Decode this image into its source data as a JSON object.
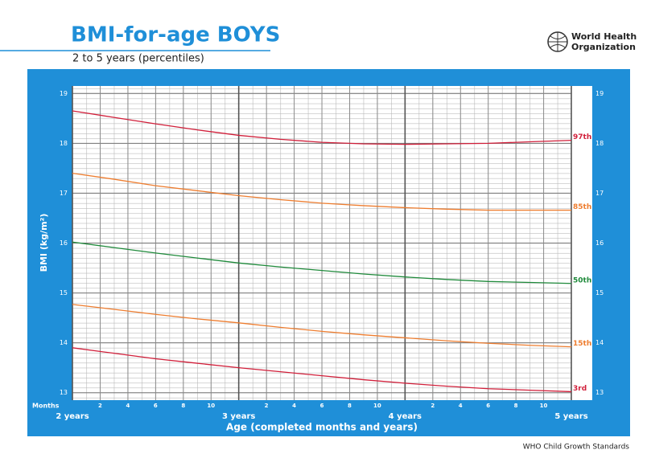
{
  "chart_data": {
    "type": "line",
    "title": "BMI-for-age BOYS",
    "subtitle": "2 to 5 years (percentiles)",
    "organization": [
      "World Health",
      "Organization"
    ],
    "source": "WHO Child Growth Standards",
    "x_label": "Age (completed months and years)",
    "x_unit_label": "Months",
    "y_label": "BMI (kg/m²)",
    "x": [
      24,
      27,
      30,
      33,
      36,
      39,
      42,
      45,
      48,
      51,
      54,
      57,
      60
    ],
    "xlim": [
      24,
      60
    ],
    "xticks": [
      {
        "value": 24,
        "label": "2 years"
      },
      {
        "value": 36,
        "label": "3 years"
      },
      {
        "value": 48,
        "label": "4 years"
      },
      {
        "value": 60,
        "label": "5 years"
      }
    ],
    "xticks_minor": [
      {
        "value": 26,
        "label": "2"
      },
      {
        "value": 28,
        "label": "4"
      },
      {
        "value": 30,
        "label": "6"
      },
      {
        "value": 32,
        "label": "8"
      },
      {
        "value": 34,
        "label": "10"
      },
      {
        "value": 38,
        "label": "2"
      },
      {
        "value": 40,
        "label": "4"
      },
      {
        "value": 42,
        "label": "6"
      },
      {
        "value": 44,
        "label": "8"
      },
      {
        "value": 46,
        "label": "10"
      },
      {
        "value": 50,
        "label": "2"
      },
      {
        "value": 52,
        "label": "4"
      },
      {
        "value": 54,
        "label": "6"
      },
      {
        "value": 56,
        "label": "8"
      },
      {
        "value": 58,
        "label": "10"
      }
    ],
    "ylim": [
      12.85,
      19.15
    ],
    "yticks": [
      13,
      14,
      15,
      16,
      17,
      18,
      19
    ],
    "grid": true,
    "series": [
      {
        "name": "97th",
        "color": "#d11f3a",
        "values": [
          18.65,
          18.52,
          18.39,
          18.27,
          18.16,
          18.08,
          18.02,
          17.99,
          17.98,
          17.99,
          18.0,
          18.03,
          18.06
        ]
      },
      {
        "name": "85th",
        "color": "#ee7d2f",
        "values": [
          17.4,
          17.28,
          17.15,
          17.05,
          16.95,
          16.87,
          16.8,
          16.75,
          16.71,
          16.68,
          16.66,
          16.66,
          16.66
        ]
      },
      {
        "name": "50th",
        "color": "#1f8a3b",
        "values": [
          16.02,
          15.91,
          15.8,
          15.7,
          15.6,
          15.52,
          15.45,
          15.38,
          15.32,
          15.27,
          15.23,
          15.21,
          15.19
        ]
      },
      {
        "name": "15th",
        "color": "#ee7d2f",
        "values": [
          14.77,
          14.67,
          14.57,
          14.48,
          14.4,
          14.31,
          14.23,
          14.16,
          14.1,
          14.04,
          13.99,
          13.95,
          13.92
        ]
      },
      {
        "name": "3rd",
        "color": "#d11f3a",
        "values": [
          13.9,
          13.79,
          13.68,
          13.59,
          13.5,
          13.42,
          13.34,
          13.26,
          13.19,
          13.13,
          13.08,
          13.05,
          13.02
        ]
      }
    ]
  }
}
